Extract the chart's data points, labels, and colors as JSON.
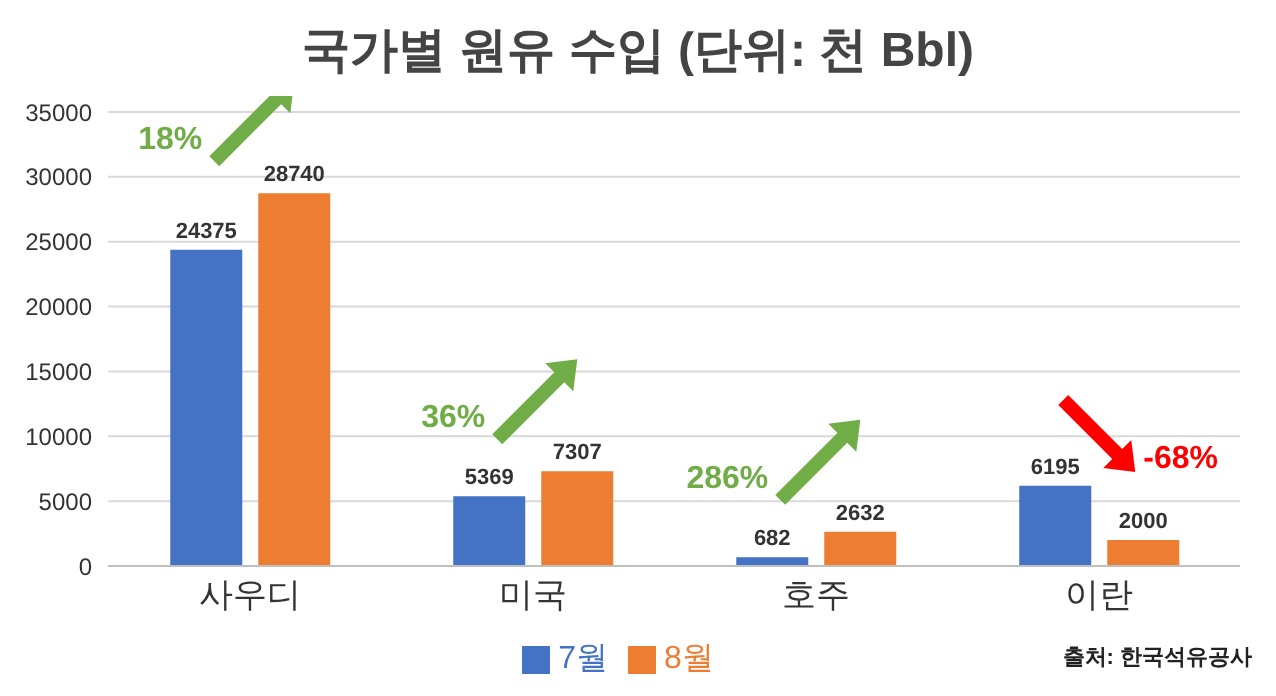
{
  "chart_data": {
    "type": "bar",
    "title": "국가별 원유 수입 (단위: 천 Bbl)",
    "categories": [
      "사우디",
      "미국",
      "호주",
      "이란"
    ],
    "series": [
      {
        "name": "7월",
        "color": "#4472c4",
        "values": [
          24375,
          5369,
          682,
          6195
        ]
      },
      {
        "name": "8월",
        "color": "#ed7d31",
        "values": [
          28740,
          7307,
          2632,
          2000
        ]
      }
    ],
    "ylim": [
      0,
      35000
    ],
    "yticks": [
      0,
      5000,
      10000,
      15000,
      20000,
      25000,
      30000,
      35000
    ],
    "grid": "y",
    "legend": "bottom",
    "data_labels": true,
    "annotations": [
      {
        "text": "18%",
        "x": "사우디",
        "y": 28740
      },
      {
        "text": "36%",
        "x": "미국",
        "y": 7307
      },
      {
        "text": "286%",
        "x": "호주",
        "y": 2632
      },
      {
        "text": "-68%",
        "x": "이란",
        "y": 2000
      },
      "출처: 한국석유공사"
    ]
  }
}
